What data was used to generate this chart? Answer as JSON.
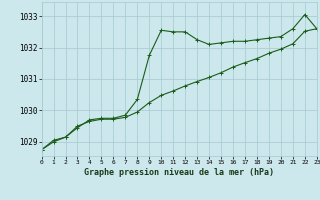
{
  "title": "Graphe pression niveau de la mer (hPa)",
  "x_ticks": [
    0,
    1,
    2,
    3,
    4,
    5,
    6,
    7,
    8,
    9,
    10,
    11,
    12,
    13,
    14,
    15,
    16,
    17,
    18,
    19,
    20,
    21,
    22,
    23
  ],
  "xlim": [
    0,
    23
  ],
  "ylim": [
    1028.55,
    1033.45
  ],
  "yticks": [
    1029,
    1030,
    1031,
    1032,
    1033
  ],
  "bg_color": "#cde8ec",
  "grid_color": "#aacdd4",
  "line_color": "#1a5c1a",
  "line1_y": [
    1028.75,
    1029.0,
    1029.15,
    1029.45,
    1029.7,
    1029.75,
    1029.75,
    1029.85,
    1030.35,
    1031.75,
    1032.55,
    1032.5,
    1032.5,
    1032.25,
    1032.1,
    1032.15,
    1032.2,
    1032.2,
    1032.25,
    1032.3,
    1032.35,
    1032.6,
    1033.05,
    1032.6
  ],
  "line2_y": [
    1028.75,
    1029.05,
    1029.15,
    1029.5,
    1029.65,
    1029.72,
    1029.72,
    1029.78,
    1029.95,
    1030.25,
    1030.48,
    1030.62,
    1030.78,
    1030.92,
    1031.05,
    1031.2,
    1031.38,
    1031.52,
    1031.65,
    1031.82,
    1031.95,
    1032.12,
    1032.52,
    1032.6
  ]
}
